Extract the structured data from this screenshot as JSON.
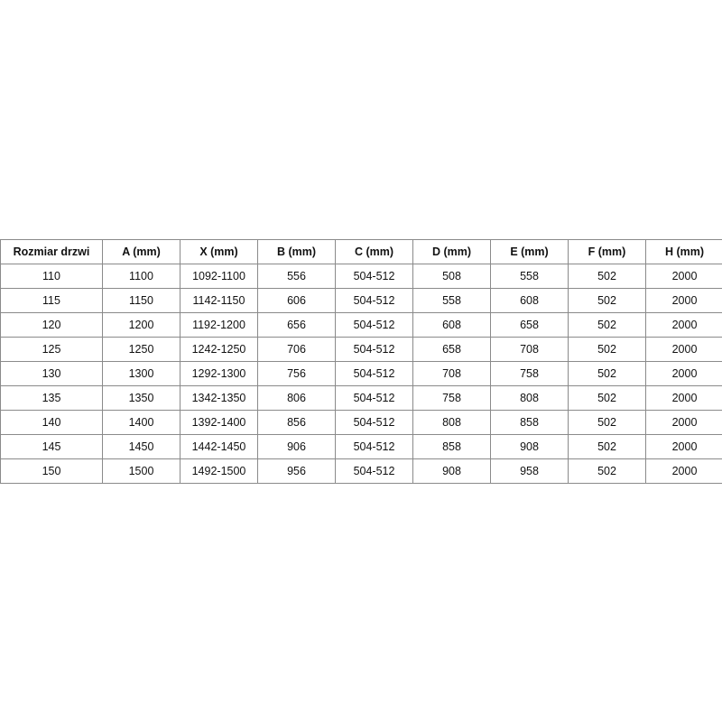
{
  "table": {
    "headers": [
      "Rozmiar drzwi",
      "A (mm)",
      "X (mm)",
      "B (mm)",
      "C (mm)",
      "D (mm)",
      "E (mm)",
      "F (mm)",
      "H (mm)"
    ],
    "rows": [
      [
        "110",
        "1100",
        "1092-1100",
        "556",
        "504-512",
        "508",
        "558",
        "502",
        "2000"
      ],
      [
        "115",
        "1150",
        "1142-1150",
        "606",
        "504-512",
        "558",
        "608",
        "502",
        "2000"
      ],
      [
        "120",
        "1200",
        "1192-1200",
        "656",
        "504-512",
        "608",
        "658",
        "502",
        "2000"
      ],
      [
        "125",
        "1250",
        "1242-1250",
        "706",
        "504-512",
        "658",
        "708",
        "502",
        "2000"
      ],
      [
        "130",
        "1300",
        "1292-1300",
        "756",
        "504-512",
        "708",
        "758",
        "502",
        "2000"
      ],
      [
        "135",
        "1350",
        "1342-1350",
        "806",
        "504-512",
        "758",
        "808",
        "502",
        "2000"
      ],
      [
        "140",
        "1400",
        "1392-1400",
        "856",
        "504-512",
        "808",
        "858",
        "502",
        "2000"
      ],
      [
        "145",
        "1450",
        "1442-1450",
        "906",
        "504-512",
        "858",
        "908",
        "502",
        "2000"
      ],
      [
        "150",
        "1500",
        "1492-1500",
        "956",
        "504-512",
        "908",
        "958",
        "502",
        "2000"
      ]
    ]
  }
}
